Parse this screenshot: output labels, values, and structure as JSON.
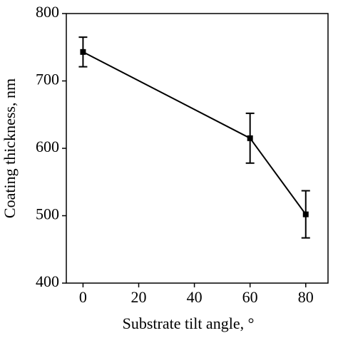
{
  "chart_data": {
    "type": "line",
    "x": [
      0,
      60,
      80
    ],
    "values": [
      743,
      615,
      502
    ],
    "errors": [
      22,
      37,
      35
    ],
    "color": "#000000",
    "xlim": [
      -6,
      88
    ],
    "ylim": [
      400,
      800
    ],
    "xticks": [
      0,
      20,
      40,
      60,
      80
    ],
    "yticks": [
      400,
      500,
      600,
      700,
      800
    ],
    "xlabel": "Substrate tilt angle, °",
    "ylabel": "Coating thickness, nm"
  }
}
